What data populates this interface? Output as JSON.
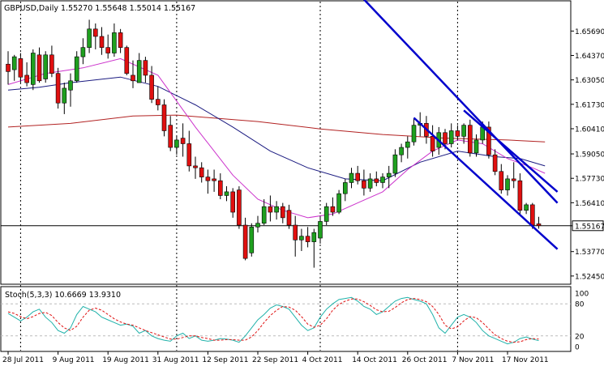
{
  "chart_data": {
    "type": "candlestick",
    "title": "GBPUSD,Daily  1.55270 1.55648 1.55014 1.55167",
    "current_price": 1.55167,
    "current_price_label": "1.55167",
    "ylim": [
      1.5205,
      1.6728
    ],
    "y_ticks": [
      "1.65690",
      "1.64370",
      "1.63050",
      "1.61730",
      "1.60410",
      "1.59050",
      "1.57730",
      "1.56410",
      "1.55167",
      "1.53770",
      "1.52450"
    ],
    "x_ticks": [
      "28 Jul 2011",
      "9 Aug 2011",
      "19 Aug 2011",
      "31 Aug 2011",
      "12 Sep 2011",
      "22 Sep 2011",
      "4 Oct 2011",
      "14 Oct 2011",
      "26 Oct 2011",
      "7 Nov 2011",
      "17 Nov 2011"
    ],
    "x_tick_bars": [
      0,
      8,
      16,
      24,
      32,
      40,
      48,
      56,
      64,
      72,
      80
    ],
    "vlines_bars": [
      2,
      27,
      50,
      72
    ],
    "bars": [
      {
        "o": 1.639,
        "h": 1.646,
        "l": 1.628,
        "c": 1.635
      },
      {
        "o": 1.636,
        "h": 1.644,
        "l": 1.63,
        "c": 1.643
      },
      {
        "o": 1.642,
        "h": 1.645,
        "l": 1.629,
        "c": 1.632
      },
      {
        "o": 1.633,
        "h": 1.64,
        "l": 1.627,
        "c": 1.629
      },
      {
        "o": 1.628,
        "h": 1.647,
        "l": 1.625,
        "c": 1.645
      },
      {
        "o": 1.644,
        "h": 1.648,
        "l": 1.629,
        "c": 1.63
      },
      {
        "o": 1.631,
        "h": 1.646,
        "l": 1.629,
        "c": 1.644
      },
      {
        "o": 1.644,
        "h": 1.649,
        "l": 1.632,
        "c": 1.634
      },
      {
        "o": 1.634,
        "h": 1.637,
        "l": 1.615,
        "c": 1.618
      },
      {
        "o": 1.618,
        "h": 1.629,
        "l": 1.612,
        "c": 1.626
      },
      {
        "o": 1.625,
        "h": 1.634,
        "l": 1.616,
        "c": 1.63
      },
      {
        "o": 1.63,
        "h": 1.646,
        "l": 1.629,
        "c": 1.643
      },
      {
        "o": 1.643,
        "h": 1.653,
        "l": 1.639,
        "c": 1.648
      },
      {
        "o": 1.648,
        "h": 1.663,
        "l": 1.645,
        "c": 1.658
      },
      {
        "o": 1.658,
        "h": 1.661,
        "l": 1.647,
        "c": 1.654
      },
      {
        "o": 1.654,
        "h": 1.659,
        "l": 1.644,
        "c": 1.648
      },
      {
        "o": 1.648,
        "h": 1.655,
        "l": 1.642,
        "c": 1.645
      },
      {
        "o": 1.645,
        "h": 1.661,
        "l": 1.643,
        "c": 1.656
      },
      {
        "o": 1.656,
        "h": 1.658,
        "l": 1.645,
        "c": 1.648
      },
      {
        "o": 1.648,
        "h": 1.649,
        "l": 1.633,
        "c": 1.634
      },
      {
        "o": 1.633,
        "h": 1.641,
        "l": 1.626,
        "c": 1.63
      },
      {
        "o": 1.629,
        "h": 1.645,
        "l": 1.629,
        "c": 1.641
      },
      {
        "o": 1.641,
        "h": 1.643,
        "l": 1.629,
        "c": 1.633
      },
      {
        "o": 1.633,
        "h": 1.638,
        "l": 1.618,
        "c": 1.62
      },
      {
        "o": 1.62,
        "h": 1.627,
        "l": 1.614,
        "c": 1.617
      },
      {
        "o": 1.617,
        "h": 1.62,
        "l": 1.6,
        "c": 1.603
      },
      {
        "o": 1.606,
        "h": 1.611,
        "l": 1.592,
        "c": 1.594
      },
      {
        "o": 1.594,
        "h": 1.6,
        "l": 1.59,
        "c": 1.598
      },
      {
        "o": 1.599,
        "h": 1.607,
        "l": 1.589,
        "c": 1.596
      },
      {
        "o": 1.596,
        "h": 1.603,
        "l": 1.581,
        "c": 1.584
      },
      {
        "o": 1.584,
        "h": 1.589,
        "l": 1.577,
        "c": 1.583
      },
      {
        "o": 1.583,
        "h": 1.586,
        "l": 1.575,
        "c": 1.578
      },
      {
        "o": 1.578,
        "h": 1.582,
        "l": 1.569,
        "c": 1.576
      },
      {
        "o": 1.577,
        "h": 1.582,
        "l": 1.57,
        "c": 1.576
      },
      {
        "o": 1.576,
        "h": 1.58,
        "l": 1.566,
        "c": 1.568
      },
      {
        "o": 1.568,
        "h": 1.573,
        "l": 1.565,
        "c": 1.57
      },
      {
        "o": 1.57,
        "h": 1.572,
        "l": 1.556,
        "c": 1.559
      },
      {
        "o": 1.571,
        "h": 1.573,
        "l": 1.55,
        "c": 1.552
      },
      {
        "o": 1.552,
        "h": 1.556,
        "l": 1.533,
        "c": 1.534
      },
      {
        "o": 1.537,
        "h": 1.553,
        "l": 1.535,
        "c": 1.551
      },
      {
        "o": 1.551,
        "h": 1.557,
        "l": 1.548,
        "c": 1.553
      },
      {
        "o": 1.553,
        "h": 1.566,
        "l": 1.552,
        "c": 1.562
      },
      {
        "o": 1.562,
        "h": 1.568,
        "l": 1.554,
        "c": 1.559
      },
      {
        "o": 1.559,
        "h": 1.565,
        "l": 1.555,
        "c": 1.562
      },
      {
        "o": 1.562,
        "h": 1.564,
        "l": 1.553,
        "c": 1.556
      },
      {
        "o": 1.56,
        "h": 1.563,
        "l": 1.55,
        "c": 1.552
      },
      {
        "o": 1.552,
        "h": 1.557,
        "l": 1.535,
        "c": 1.544
      },
      {
        "o": 1.544,
        "h": 1.55,
        "l": 1.538,
        "c": 1.546
      },
      {
        "o": 1.546,
        "h": 1.551,
        "l": 1.54,
        "c": 1.543
      },
      {
        "o": 1.543,
        "h": 1.55,
        "l": 1.529,
        "c": 1.548
      },
      {
        "o": 1.545,
        "h": 1.557,
        "l": 1.542,
        "c": 1.554
      },
      {
        "o": 1.554,
        "h": 1.564,
        "l": 1.552,
        "c": 1.562
      },
      {
        "o": 1.562,
        "h": 1.567,
        "l": 1.557,
        "c": 1.559
      },
      {
        "o": 1.559,
        "h": 1.571,
        "l": 1.558,
        "c": 1.569
      },
      {
        "o": 1.569,
        "h": 1.577,
        "l": 1.565,
        "c": 1.575
      },
      {
        "o": 1.575,
        "h": 1.583,
        "l": 1.572,
        "c": 1.58
      },
      {
        "o": 1.58,
        "h": 1.584,
        "l": 1.574,
        "c": 1.576
      },
      {
        "o": 1.576,
        "h": 1.582,
        "l": 1.568,
        "c": 1.572
      },
      {
        "o": 1.572,
        "h": 1.58,
        "l": 1.57,
        "c": 1.577
      },
      {
        "o": 1.577,
        "h": 1.581,
        "l": 1.573,
        "c": 1.575
      },
      {
        "o": 1.575,
        "h": 1.58,
        "l": 1.572,
        "c": 1.578
      },
      {
        "o": 1.578,
        "h": 1.584,
        "l": 1.572,
        "c": 1.58
      },
      {
        "o": 1.58,
        "h": 1.593,
        "l": 1.578,
        "c": 1.59
      },
      {
        "o": 1.59,
        "h": 1.596,
        "l": 1.586,
        "c": 1.594
      },
      {
        "o": 1.594,
        "h": 1.6,
        "l": 1.588,
        "c": 1.597
      },
      {
        "o": 1.597,
        "h": 1.61,
        "l": 1.595,
        "c": 1.606
      },
      {
        "o": 1.606,
        "h": 1.613,
        "l": 1.6,
        "c": 1.607
      },
      {
        "o": 1.607,
        "h": 1.611,
        "l": 1.596,
        "c": 1.6
      },
      {
        "o": 1.6,
        "h": 1.606,
        "l": 1.589,
        "c": 1.592
      },
      {
        "o": 1.594,
        "h": 1.605,
        "l": 1.59,
        "c": 1.602
      },
      {
        "o": 1.602,
        "h": 1.604,
        "l": 1.593,
        "c": 1.596
      },
      {
        "o": 1.596,
        "h": 1.607,
        "l": 1.594,
        "c": 1.603
      },
      {
        "o": 1.603,
        "h": 1.606,
        "l": 1.598,
        "c": 1.6
      },
      {
        "o": 1.6,
        "h": 1.607,
        "l": 1.596,
        "c": 1.606
      },
      {
        "o": 1.606,
        "h": 1.609,
        "l": 1.589,
        "c": 1.591
      },
      {
        "o": 1.591,
        "h": 1.601,
        "l": 1.589,
        "c": 1.598
      },
      {
        "o": 1.598,
        "h": 1.608,
        "l": 1.596,
        "c": 1.605
      },
      {
        "o": 1.605,
        "h": 1.608,
        "l": 1.588,
        "c": 1.59
      },
      {
        "o": 1.59,
        "h": 1.593,
        "l": 1.579,
        "c": 1.581
      },
      {
        "o": 1.581,
        "h": 1.585,
        "l": 1.569,
        "c": 1.571
      },
      {
        "o": 1.571,
        "h": 1.579,
        "l": 1.568,
        "c": 1.577
      },
      {
        "o": 1.577,
        "h": 1.586,
        "l": 1.572,
        "c": 1.576
      },
      {
        "o": 1.576,
        "h": 1.58,
        "l": 1.558,
        "c": 1.56
      },
      {
        "o": 1.56,
        "h": 1.564,
        "l": 1.558,
        "c": 1.563
      },
      {
        "o": 1.563,
        "h": 1.564,
        "l": 1.55,
        "c": 1.552
      },
      {
        "o": 1.5527,
        "h": 1.5565,
        "l": 1.5501,
        "c": 1.5517
      }
    ],
    "ma_lines": [
      {
        "name": "MA slow",
        "color": "#b22222",
        "points": [
          [
            0,
            1.605
          ],
          [
            10,
            1.607
          ],
          [
            20,
            1.611
          ],
          [
            27,
            1.6115
          ],
          [
            40,
            1.608
          ],
          [
            50,
            1.604
          ],
          [
            60,
            1.601
          ],
          [
            70,
            1.599
          ],
          [
            80,
            1.598
          ],
          [
            86,
            1.597
          ]
        ]
      },
      {
        "name": "MA mid",
        "color": "#1a1a80",
        "points": [
          [
            0,
            1.625
          ],
          [
            5,
            1.6265
          ],
          [
            10,
            1.629
          ],
          [
            18,
            1.632
          ],
          [
            24,
            1.627
          ],
          [
            30,
            1.617
          ],
          [
            36,
            1.605
          ],
          [
            42,
            1.592
          ],
          [
            48,
            1.583
          ],
          [
            54,
            1.577
          ],
          [
            60,
            1.576
          ],
          [
            66,
            1.586
          ],
          [
            72,
            1.592
          ],
          [
            78,
            1.589
          ],
          [
            82,
            1.588
          ],
          [
            86,
            1.584
          ]
        ]
      },
      {
        "name": "MA fast",
        "color": "#cc33cc",
        "points": [
          [
            0,
            1.628
          ],
          [
            6,
            1.634
          ],
          [
            12,
            1.637
          ],
          [
            18,
            1.642
          ],
          [
            24,
            1.633
          ],
          [
            30,
            1.605
          ],
          [
            36,
            1.579
          ],
          [
            40,
            1.566
          ],
          [
            44,
            1.56
          ],
          [
            48,
            1.556
          ],
          [
            52,
            1.558
          ],
          [
            56,
            1.564
          ],
          [
            60,
            1.57
          ],
          [
            64,
            1.582
          ],
          [
            68,
            1.592
          ],
          [
            72,
            1.598
          ],
          [
            76,
            1.596
          ],
          [
            80,
            1.588
          ],
          [
            84,
            1.583
          ],
          [
            86,
            1.58
          ]
        ]
      }
    ],
    "trend_lines": [
      {
        "name": "channel-top",
        "color": "#0000cc",
        "x1": 57,
        "y1": 1.674,
        "x2": 88,
        "y2": 1.564
      },
      {
        "name": "channel-upper-inner",
        "color": "#0000cc",
        "x1": 73,
        "y1": 1.614,
        "x2": 88,
        "y2": 1.57
      },
      {
        "name": "channel-bottom",
        "color": "#0000cc",
        "x1": 65,
        "y1": 1.61,
        "x2": 88,
        "y2": 1.539
      }
    ],
    "stoch": {
      "label": "Stoch(5,3,3) 10.6669 13.9310",
      "levels": [
        "100",
        "80",
        "20",
        "0"
      ],
      "main": [
        62,
        55,
        48,
        55,
        65,
        70,
        55,
        45,
        30,
        25,
        35,
        60,
        75,
        70,
        65,
        55,
        50,
        45,
        40,
        42,
        38,
        25,
        30,
        20,
        15,
        12,
        10,
        20,
        25,
        15,
        20,
        12,
        10,
        12,
        15,
        14,
        12,
        8,
        20,
        35,
        50,
        60,
        72,
        78,
        75,
        70,
        55,
        40,
        30,
        35,
        55,
        70,
        80,
        88,
        90,
        92,
        85,
        75,
        70,
        60,
        65,
        75,
        85,
        90,
        92,
        88,
        85,
        80,
        60,
        35,
        25,
        40,
        55,
        60,
        55,
        45,
        30,
        20,
        15,
        10,
        5,
        8,
        15,
        18,
        14,
        11
      ],
      "signal": [
        65,
        62,
        56,
        52,
        56,
        62,
        64,
        58,
        45,
        35,
        30,
        38,
        55,
        68,
        72,
        68,
        60,
        52,
        46,
        42,
        40,
        35,
        30,
        26,
        22,
        18,
        14,
        14,
        17,
        20,
        20,
        17,
        15,
        12,
        12,
        13,
        13,
        12,
        12,
        18,
        30,
        45,
        58,
        68,
        75,
        74,
        68,
        56,
        42,
        36,
        40,
        52,
        68,
        79,
        85,
        89,
        89,
        84,
        77,
        69,
        65,
        66,
        73,
        82,
        88,
        90,
        88,
        84,
        75,
        60,
        40,
        33,
        37,
        48,
        56,
        54,
        45,
        33,
        22,
        15,
        10,
        8,
        9,
        13,
        15,
        14
      ]
    }
  }
}
